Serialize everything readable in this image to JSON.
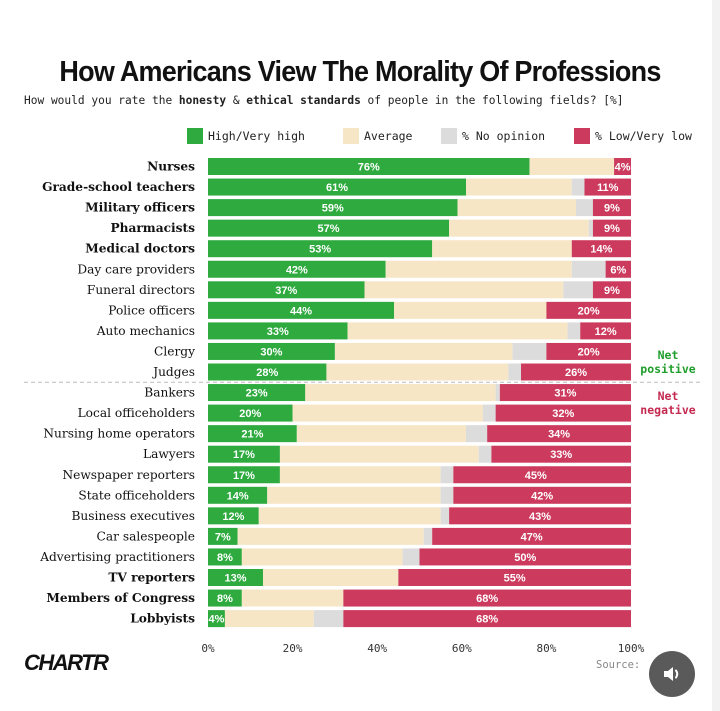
{
  "title": "How Americans View The Morality Of Professions",
  "subtitle": {
    "part1": "How would you rate the ",
    "bold1": "honesty",
    "part2": " & ",
    "bold2": "ethical standards",
    "part3": " of people in the following fields? [%]"
  },
  "legend": [
    {
      "label": "High/Very high",
      "color": "#2eaa3f"
    },
    {
      "label": "Average",
      "color": "#f6e6c6"
    },
    {
      "label": "% No opinion",
      "color": "#dcdcdc"
    },
    {
      "label": "% Low/Very low",
      "color": "#cc3b5e"
    }
  ],
  "net": {
    "positive_line1": "Net",
    "positive_line2": "positive",
    "negative_line1": "Net",
    "negative_line2": "negative"
  },
  "brand": "CHARTR",
  "source": "Source:",
  "sound_icon": "speaker-icon",
  "chart_data": {
    "type": "bar",
    "orientation": "horizontal",
    "stacked": true,
    "title": "How Americans View The Morality Of Professions",
    "xlim": [
      0,
      100
    ],
    "x_ticks": [
      "0%",
      "20%",
      "40%",
      "60%",
      "80%",
      "100%"
    ],
    "categories": [
      "Nurses",
      "Grade-school teachers",
      "Military officers",
      "Pharmacists",
      "Medical doctors",
      "Day care providers",
      "Funeral directors",
      "Police officers",
      "Auto mechanics",
      "Clergy",
      "Judges",
      "Bankers",
      "Local officeholders",
      "Nursing home operators",
      "Lawyers",
      "Newspaper reporters",
      "State officeholders",
      "Business executives",
      "Car salespeople",
      "Advertising practitioners",
      "TV reporters",
      "Members of Congress",
      "Lobbyists"
    ],
    "bold_categories": [
      0,
      1,
      2,
      3,
      4,
      20,
      21,
      22
    ],
    "series": [
      {
        "name": "High/Very high",
        "values": [
          76,
          61,
          59,
          57,
          53,
          42,
          37,
          44,
          33,
          30,
          28,
          23,
          20,
          21,
          17,
          17,
          14,
          12,
          7,
          8,
          13,
          8,
          4
        ]
      },
      {
        "name": "Average",
        "values": [
          20,
          25,
          28,
          33,
          33,
          44,
          47,
          36,
          52,
          42,
          43,
          45,
          45,
          40,
          47,
          38,
          41,
          43,
          44,
          38,
          32,
          24,
          21
        ]
      },
      {
        "name": "No opinion",
        "values": [
          0,
          3,
          4,
          1,
          0,
          8,
          7,
          0,
          3,
          8,
          3,
          1,
          3,
          5,
          3,
          3,
          3,
          2,
          2,
          4,
          0,
          0,
          7
        ]
      },
      {
        "name": "Low/Very low",
        "values": [
          4,
          11,
          9,
          9,
          14,
          6,
          9,
          20,
          12,
          20,
          26,
          31,
          32,
          34,
          33,
          45,
          42,
          43,
          47,
          50,
          55,
          68,
          68
        ]
      }
    ],
    "bar_labels": {
      "high": [
        "76%",
        "61%",
        "59%",
        "57%",
        "53%",
        "42%",
        "37%",
        "44%",
        "33%",
        "30%",
        "28%",
        "23%",
        "20%",
        "21%",
        "17%",
        "17%",
        "14%",
        "12%",
        "7%",
        "8%",
        "13%",
        "8%",
        "4%"
      ],
      "low": [
        "4%",
        "11%",
        "9%",
        "9%",
        "14%",
        "6%",
        "9%",
        "20%",
        "12%",
        "20%",
        "26%",
        "31%",
        "32%",
        "34%",
        "33%",
        "45%",
        "42%",
        "43%",
        "47%",
        "50%",
        "55%",
        "68%",
        "68%"
      ]
    },
    "divider_after_index": 10
  }
}
